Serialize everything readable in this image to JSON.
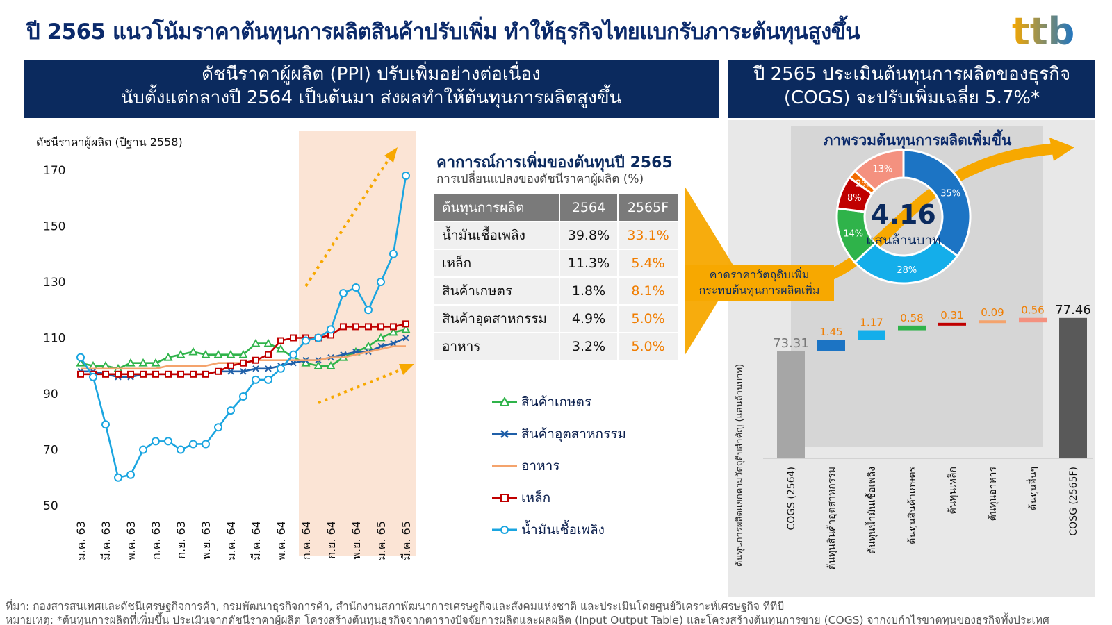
{
  "headline": "ปี 2565 แนวโน้มราคาต้นทุนการผลิตสินค้าปรับเพิ่ม ทำให้ธุรกิจไทยแบกรับภาระต้นทุนสูงขึ้น",
  "logo_text": "ttb",
  "banner_left": {
    "line1": "ดัชนีราคาผู้ผลิต (PPI) ปรับเพิ่มอย่างต่อเนื่อง",
    "line2": "นับตั้งแต่กลางปี 2564 เป็นต้นมา ส่งผลทำให้ต้นทุนการผลิตสูงขึ้น"
  },
  "banner_right": {
    "line1": "ปี 2565 ประเมินต้นทุนการผลิตของธุรกิจ",
    "line2": "(COGS)  จะปรับเพิ่มเฉลี่ย 5.7%*"
  },
  "colors": {
    "navy": "#0b2a5e",
    "agri": "#2fb34a",
    "industrial": "#1f5fa8",
    "food": "#f4a36c",
    "steel": "#c00000",
    "fuel": "#1aa5e0",
    "highlight": "#fbe4d5",
    "orange": "#f7a800"
  },
  "chart_data": [
    {
      "type": "line",
      "ylabel": "ดัชนีราคาผู้ผลิต (ปีฐาน 2558)",
      "ylim": [
        50,
        170
      ],
      "yticks": [
        170,
        150,
        130,
        110,
        90,
        70,
        50
      ],
      "x_tick_labels": [
        "ม.ค. 63",
        "มี.ค. 63",
        "พ.ค. 63",
        "ก.ค. 63",
        "ก.ย. 63",
        "พ.ย. 63",
        "ม.ค. 64",
        "มี.ค. 64",
        "พ.ค. 64",
        "ก.ค. 64",
        "ก.ย. 64",
        "พ.ย. 64",
        "ม.ค. 65",
        "มี.ค. 65"
      ],
      "n_points": 27,
      "highlight_from_index": 18,
      "series": [
        {
          "name": "สินค้าเกษตร",
          "key": "agri",
          "marker": "triangle",
          "values": [
            101,
            100,
            100,
            99,
            101,
            101,
            101,
            103,
            104,
            105,
            104,
            104,
            104,
            104,
            108,
            108,
            106,
            103,
            101,
            100,
            100,
            103,
            105,
            107,
            110,
            112,
            113
          ]
        },
        {
          "name": "สินค้าอุตสาหกรรม",
          "key": "industrial",
          "marker": "x",
          "values": [
            98,
            98,
            97,
            96,
            96,
            97,
            97,
            97,
            97,
            97,
            97,
            98,
            98,
            98,
            99,
            99,
            100,
            101,
            102,
            102,
            103,
            104,
            105,
            105,
            107,
            108,
            110
          ]
        },
        {
          "name": "อาหาร",
          "key": "food",
          "marker": "none",
          "values": [
            99,
            99,
            99,
            99,
            99,
            99,
            99,
            100,
            100,
            100,
            100,
            101,
            101,
            101,
            102,
            102,
            102,
            102,
            102,
            102,
            103,
            103,
            104,
            105,
            106,
            107,
            107
          ]
        },
        {
          "name": "เหล็ก",
          "key": "steel",
          "marker": "square",
          "values": [
            97,
            97,
            97,
            97,
            97,
            97,
            97,
            97,
            97,
            97,
            97,
            98,
            100,
            101,
            102,
            104,
            109,
            110,
            110,
            110,
            111,
            114,
            114,
            114,
            114,
            114,
            115
          ]
        },
        {
          "name": "น้ำมันเชื้อเพลิง",
          "key": "fuel",
          "marker": "circle",
          "values": [
            103,
            96,
            79,
            60,
            61,
            70,
            73,
            73,
            70,
            72,
            72,
            78,
            84,
            89,
            95,
            95,
            99,
            104,
            109,
            110,
            113,
            126,
            128,
            120,
            130,
            140,
            168
          ]
        }
      ]
    },
    {
      "type": "table",
      "title": "คาการณ์การเพิ่มของต้นทุนปี 2565",
      "subtitle": "การเปลี่ยนแปลงของดัชนีราคาผู้ผลิต (%)",
      "columns": [
        "ต้นทุนการผลิต",
        "2564",
        "2565F"
      ],
      "rows": [
        [
          "น้ำมันเชื้อเพลิง",
          "39.8%",
          "33.1%"
        ],
        [
          "เหล็ก",
          "11.3%",
          "5.4%"
        ],
        [
          "สินค้าเกษตร",
          "1.8%",
          "8.1%"
        ],
        [
          "สินค้าอุตสาหกรรม",
          "4.9%",
          "5.0%"
        ],
        [
          "อาหาร",
          "3.2%",
          "5.0%"
        ]
      ]
    },
    {
      "type": "pie",
      "title": "ภาพรวมต้นทุนการผลิตเพิ่มขึ้น",
      "center_value": "4.16",
      "center_label": "แสนล้านบาท",
      "slices": [
        {
          "label": "35%",
          "value": 35,
          "color": "#1c74c4"
        },
        {
          "label": "28%",
          "value": 28,
          "color": "#14aeea"
        },
        {
          "label": "14%",
          "value": 14,
          "color": "#2fb34a"
        },
        {
          "label": "8%",
          "value": 8,
          "color": "#c00000"
        },
        {
          "label": "2%",
          "value": 2,
          "color": "#f26b00"
        },
        {
          "label": "13%",
          "value": 13,
          "color": "#f4917f"
        }
      ]
    },
    {
      "type": "bar",
      "ylabel": "ต้นทุนการผลิตแยกตามวัตถุดิบสำคัญ (แสนล้านบาท)",
      "categories": [
        "COGS (2564)",
        "ต้นทุนสินค้าอุตสาหกรรม",
        "ต้นทุนน้ำมันเชื้อเพลิง",
        "ต้นทุนสินค้าเกษตร",
        "ต้นทุนเหล็ก",
        "ต้นทุนอาหาร",
        "ต้นทุนอื่นๆ",
        "COSG (2565F)"
      ],
      "values": [
        73.31,
        1.45,
        1.17,
        0.58,
        0.31,
        0.09,
        0.56,
        77.46
      ],
      "labels": [
        "73.31",
        "1.45",
        "1.17",
        "0.58",
        "0.31",
        "0.09",
        "0.56",
        "77.46"
      ],
      "colors": [
        "#a6a6a6",
        "#1c74c4",
        "#14aeea",
        "#2fb34a",
        "#c00000",
        "#f4a36c",
        "#f4917f",
        "#595959"
      ],
      "kinds": [
        "total",
        "delta",
        "delta",
        "delta",
        "delta",
        "delta",
        "delta",
        "total"
      ]
    }
  ],
  "callout": {
    "line1": "คาดราคาวัตถุดิบเพิ่ม",
    "line2": "กระทบต้นทุนการผลิตเพิ่ม"
  },
  "footnotes": {
    "source": "ที่มา: กองสารสนเทศและดัชนีเศรษฐกิจการค้า, กรมพัฒนาธุรกิจการค้า, สำนักงานสภาพัฒนาการเศรษฐกิจและสังคมแห่งชาติ  และประเมินโดยศูนย์วิเคราะห์เศรษฐกิจ ทีทีบี",
    "note": "หมายเหตุ:  *ต้นทุนการผลิตที่เพิ่มขึ้น ประเมินจากดัชนีราคาผู้ผลิต โครงสร้างต้นทุนธุรกิจจากตารางปัจจัยการผลิตและผลผลิต (Input Output Table) และโครงสร้างต้นทุนการขาย (COGS) จากงบกำไรขาดทุนของธุรกิจทั้งประเทศ"
  }
}
